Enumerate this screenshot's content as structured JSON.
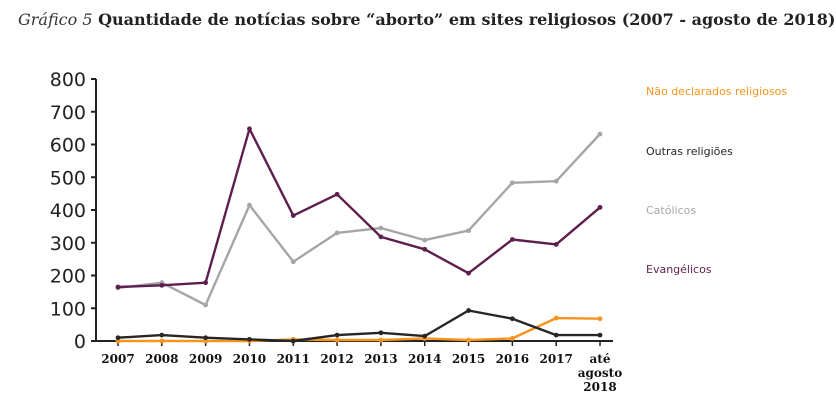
{
  "chart_data": {
    "type": "line",
    "figure_label": "Gráfico 5",
    "title": "Quantidade de notícias sobre “aborto” em sites religiosos (2007 - agosto de 2018)",
    "xlabel": "",
    "ylabel": "",
    "categories": [
      "2007",
      "2008",
      "2009",
      "2010",
      "2011",
      "2012",
      "2013",
      "2014",
      "2015",
      "2016",
      "2017",
      "até agosto 2018"
    ],
    "ylim": [
      0,
      800
    ],
    "yticks": [
      0,
      100,
      200,
      300,
      400,
      500,
      600,
      700,
      800
    ],
    "grid": false,
    "legend_position": "right",
    "series": [
      {
        "name": "Não declarados religiosos",
        "color": "#f7941d",
        "values": [
          0,
          0,
          0,
          0,
          5,
          3,
          3,
          8,
          3,
          8,
          70,
          68
        ]
      },
      {
        "name": "Outras religiões",
        "color": "#262626",
        "values": [
          10,
          18,
          10,
          5,
          0,
          18,
          25,
          15,
          93,
          68,
          18,
          18
        ]
      },
      {
        "name": "Católicos",
        "color": "#a6a6a6",
        "values": [
          162,
          178,
          110,
          415,
          242,
          330,
          345,
          308,
          337,
          483,
          488,
          632
        ]
      },
      {
        "name": "Evangélicos",
        "color": "#5e1f4e",
        "values": [
          165,
          170,
          178,
          648,
          383,
          448,
          318,
          280,
          207,
          310,
          295,
          408
        ]
      }
    ]
  }
}
